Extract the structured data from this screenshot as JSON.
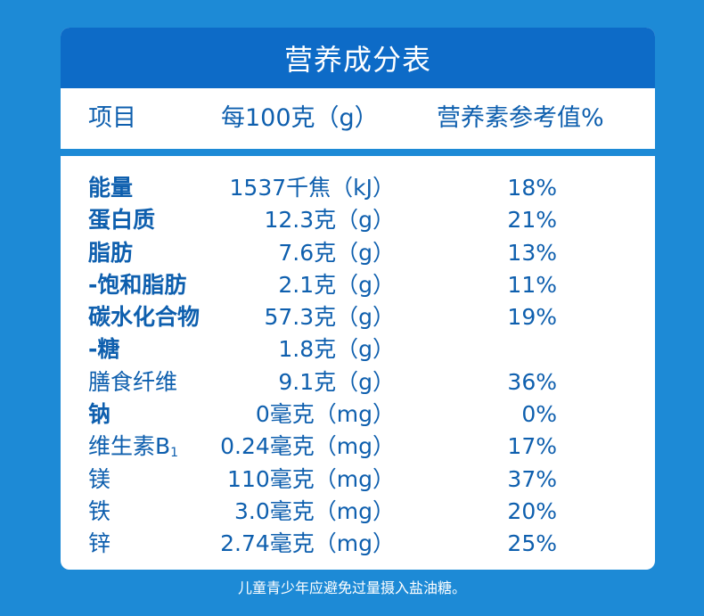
{
  "title": "营养成分表",
  "header": {
    "item": "项目",
    "per100": "每100克（g）",
    "nrv": "营养素参考值%"
  },
  "rows": [
    {
      "name": "能量",
      "amount": "1537千焦（kJ）",
      "nrv": "18%",
      "bold": true
    },
    {
      "name": "蛋白质",
      "amount": "12.3克（g）",
      "nrv": "21%",
      "bold": true
    },
    {
      "name": "脂肪",
      "amount": "7.6克（g）",
      "nrv": "13%",
      "bold": true
    },
    {
      "name": "-饱和脂肪",
      "amount": "2.1克（g）",
      "nrv": "11%",
      "bold": true
    },
    {
      "name": "碳水化合物",
      "amount": "57.3克（g）",
      "nrv": "19%",
      "bold": true
    },
    {
      "name": "-糖",
      "amount": "1.8克（g）",
      "nrv": "",
      "bold": true
    },
    {
      "name": "膳食纤维",
      "amount": "9.1克（g）",
      "nrv": "36%",
      "bold": false
    },
    {
      "name": "钠",
      "amount": "0毫克（mg）",
      "nrv": "0%",
      "bold": true
    },
    {
      "name": "维生素B",
      "name_sub": "1",
      "amount": "0.24毫克（mg）",
      "nrv": "17%",
      "bold": false
    },
    {
      "name": "镁",
      "amount": "110毫克（mg）",
      "nrv": "37%",
      "bold": false
    },
    {
      "name": "铁",
      "amount": "3.0毫克（mg）",
      "nrv": "20%",
      "bold": false
    },
    {
      "name": "锌",
      "amount": "2.74毫克（mg）",
      "nrv": "25%",
      "bold": false
    }
  ],
  "footnote": "儿童青少年应避免过量摄入盐油糖。",
  "colors": {
    "background": "#1d8ad6",
    "title_bar": "#0d6bc7",
    "text": "#0e5fae",
    "panel": "#ffffff"
  }
}
